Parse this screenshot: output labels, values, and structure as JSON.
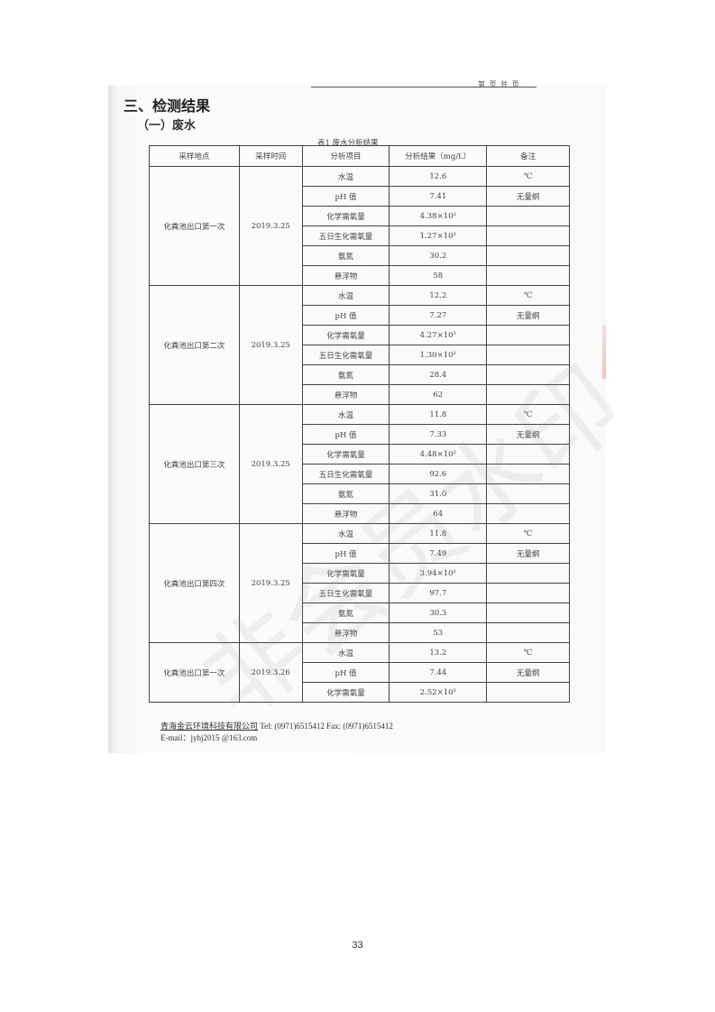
{
  "header_right": "第 页 共 页",
  "section_title": "三、检测结果",
  "subsection_title": "（一）废水",
  "table_caption": "表1  废水分析结果",
  "table": {
    "headers": [
      "采样地点",
      "采样时间",
      "分析项目",
      "分析结果（mg/L）",
      "备注"
    ],
    "groups": [
      {
        "location": "化粪池出口第一次",
        "date": "2019.3.25",
        "rows": [
          {
            "item": "水温",
            "result": "12.6",
            "note": "℃"
          },
          {
            "item": "pH 值",
            "result": "7.41",
            "note": "无量纲"
          },
          {
            "item": "化学需氧量",
            "result": "4.38×10²",
            "note": ""
          },
          {
            "item": "五日生化需氧量",
            "result": "1.27×10²",
            "note": ""
          },
          {
            "item": "氨氮",
            "result": "30.2",
            "note": ""
          },
          {
            "item": "悬浮物",
            "result": "58",
            "note": ""
          }
        ]
      },
      {
        "location": "化粪池出口第二次",
        "date": "2019.3.25",
        "rows": [
          {
            "item": "水温",
            "result": "12.2",
            "note": "℃"
          },
          {
            "item": "pH 值",
            "result": "7.27",
            "note": "无量纲"
          },
          {
            "item": "化学需氧量",
            "result": "4.27×10²",
            "note": ""
          },
          {
            "item": "五日生化需氧量",
            "result": "1.30×10²",
            "note": ""
          },
          {
            "item": "氨氮",
            "result": "28.4",
            "note": ""
          },
          {
            "item": "悬浮物",
            "result": "62",
            "note": ""
          }
        ]
      },
      {
        "location": "化粪池出口第三次",
        "date": "2019.3.25",
        "rows": [
          {
            "item": "水温",
            "result": "11.8",
            "note": "℃"
          },
          {
            "item": "pH 值",
            "result": "7.33",
            "note": "无量纲"
          },
          {
            "item": "化学需氧量",
            "result": "4.48×10²",
            "note": ""
          },
          {
            "item": "五日生化需氧量",
            "result": "92.6",
            "note": ""
          },
          {
            "item": "氨氮",
            "result": "31.0",
            "note": ""
          },
          {
            "item": "悬浮物",
            "result": "64",
            "note": ""
          }
        ]
      },
      {
        "location": "化粪池出口第四次",
        "date": "2019.3.25",
        "rows": [
          {
            "item": "水温",
            "result": "11.8",
            "note": "℃"
          },
          {
            "item": "pH 值",
            "result": "7.49",
            "note": "无量纲"
          },
          {
            "item": "化学需氧量",
            "result": "3.94×10²",
            "note": ""
          },
          {
            "item": "五日生化需氧量",
            "result": "97.7",
            "note": ""
          },
          {
            "item": "氨氮",
            "result": "30.3",
            "note": ""
          },
          {
            "item": "悬浮物",
            "result": "53",
            "note": ""
          }
        ]
      },
      {
        "location": "化粪池出口第一次",
        "date": "2019.3.26",
        "rows": [
          {
            "item": "水温",
            "result": "13.2",
            "note": "℃"
          },
          {
            "item": "pH 值",
            "result": "7.44",
            "note": "无量纲"
          },
          {
            "item": "化学需氧量",
            "result": "2.52×10²",
            "note": ""
          }
        ]
      }
    ]
  },
  "watermark": "非会员水印",
  "footer": {
    "company": "青海金云环境科技有限公司",
    "contact": " Tel:  (0971)6515412   Fax:  (0971)6515412",
    "email": "E-mail：jyhj2015 @163.com"
  },
  "page_number": "33"
}
